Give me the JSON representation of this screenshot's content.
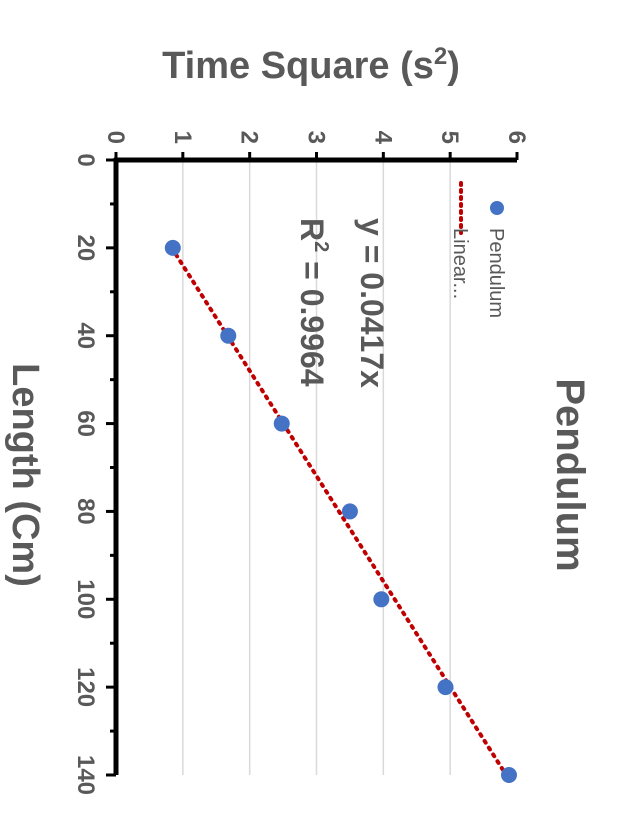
{
  "chart_data": {
    "type": "scatter",
    "title": "Pendulum",
    "xlabel": "Length  (Cm)",
    "ylabel": "Time Square (s²)",
    "ylabel_base": "Time Square (s",
    "ylabel_sup": "2",
    "ylabel_close": ")",
    "xlim": [
      0,
      140
    ],
    "ylim": [
      0,
      6
    ],
    "x_ticks": [
      "0",
      "20",
      "40",
      "60",
      "80",
      "100",
      "120",
      "140"
    ],
    "y_ticks": [
      "0",
      "1",
      "2",
      "3",
      "4",
      "5",
      "6"
    ],
    "grid": true,
    "series": [
      {
        "name": "Pendulum",
        "color": "#4472C4",
        "x": [
          20,
          40,
          60,
          80,
          100,
          120,
          140
        ],
        "y": [
          0.85,
          1.68,
          2.48,
          3.5,
          3.97,
          4.93,
          5.88
        ]
      }
    ],
    "trendline": {
      "name": "Linear...",
      "color": "#C00000",
      "slope": 0.0417,
      "equation": "y = 0.0417x",
      "r2_base": "R",
      "r2_sup": "2",
      "r2_value": " = 0.9964"
    },
    "legend_position": "top-right",
    "orientation": "rotated 90° clockwise"
  }
}
